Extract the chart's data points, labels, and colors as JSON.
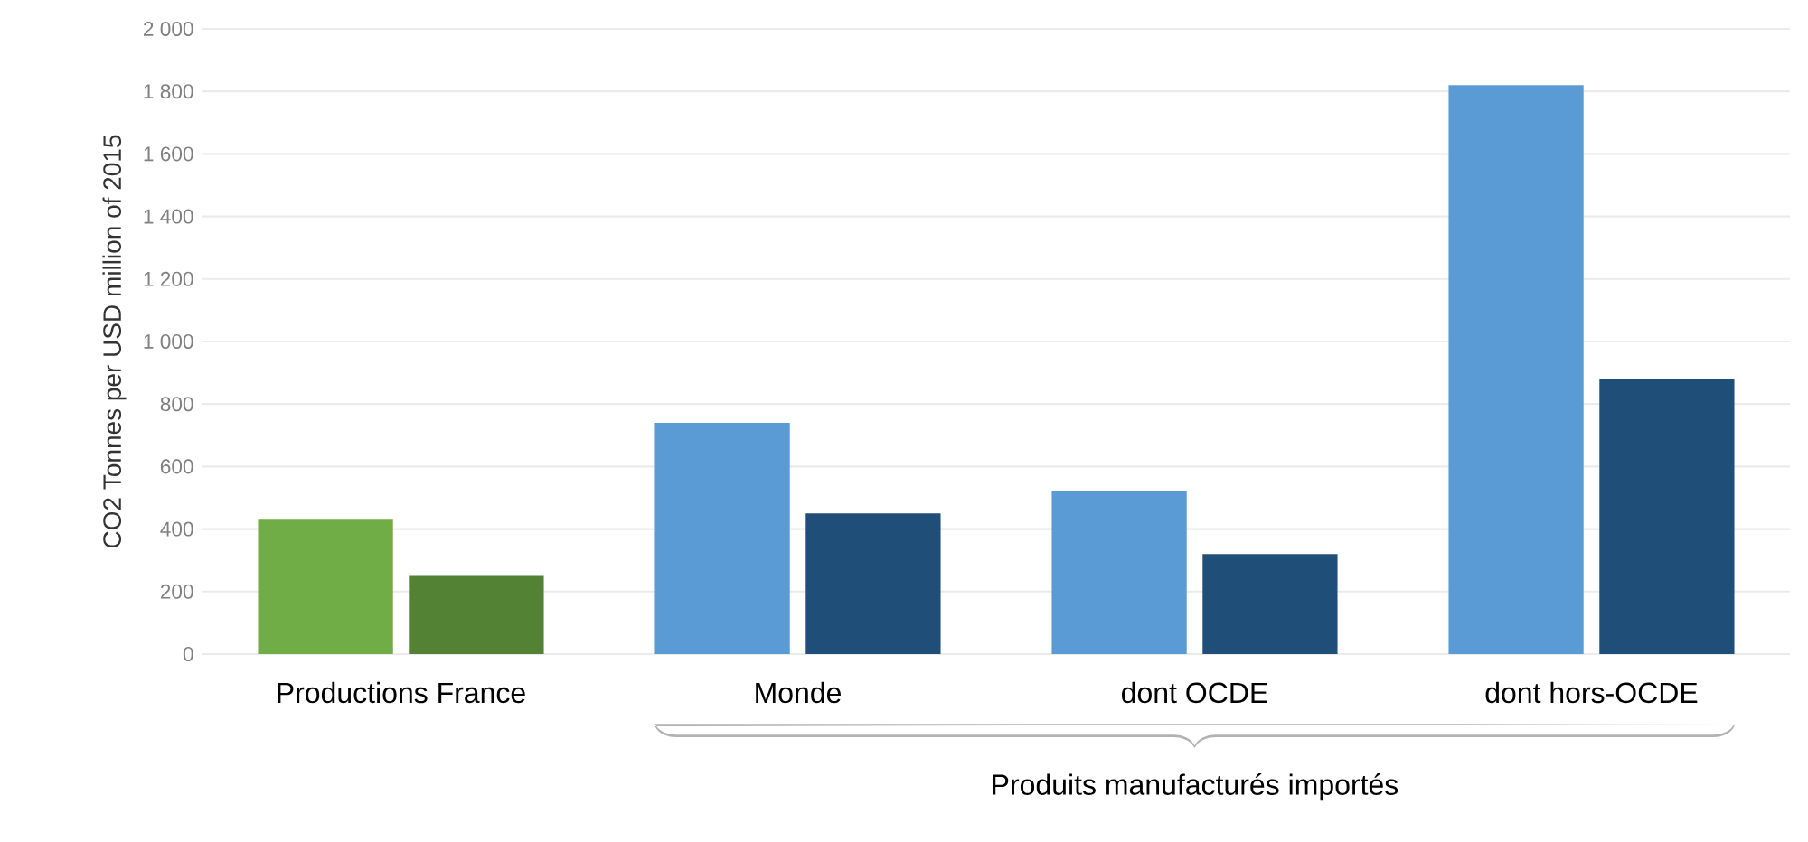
{
  "chart_data": {
    "type": "bar",
    "ylabel": "CO2 Tonnes per USD million of 2015",
    "categories": [
      "Productions France",
      "Monde",
      "dont OCDE",
      "dont hors-OCDE"
    ],
    "series": [
      {
        "colors": [
          "#70ad47",
          "#5b9bd5",
          "#5b9bd5",
          "#5b9bd5"
        ],
        "values": [
          430,
          740,
          520,
          1820
        ]
      },
      {
        "colors": [
          "#548235",
          "#1f4e79",
          "#1f4e79",
          "#1f4e79"
        ],
        "values": [
          250,
          450,
          320,
          880
        ]
      }
    ],
    "ylim": [
      0,
      2000
    ],
    "yticks": [
      0,
      200,
      400,
      600,
      800,
      {
        "value": 1000,
        "label": "1 000"
      },
      {
        "value": 1200,
        "label": "1 200"
      },
      {
        "value": 1400,
        "label": "1 400"
      },
      {
        "value": 1600,
        "label": "1 600"
      },
      {
        "value": 1800,
        "label": "1 800"
      },
      {
        "value": 2000,
        "label": "2 000"
      }
    ],
    "grid": "y",
    "annotations": [
      "Produits manufacturés importés"
    ]
  }
}
